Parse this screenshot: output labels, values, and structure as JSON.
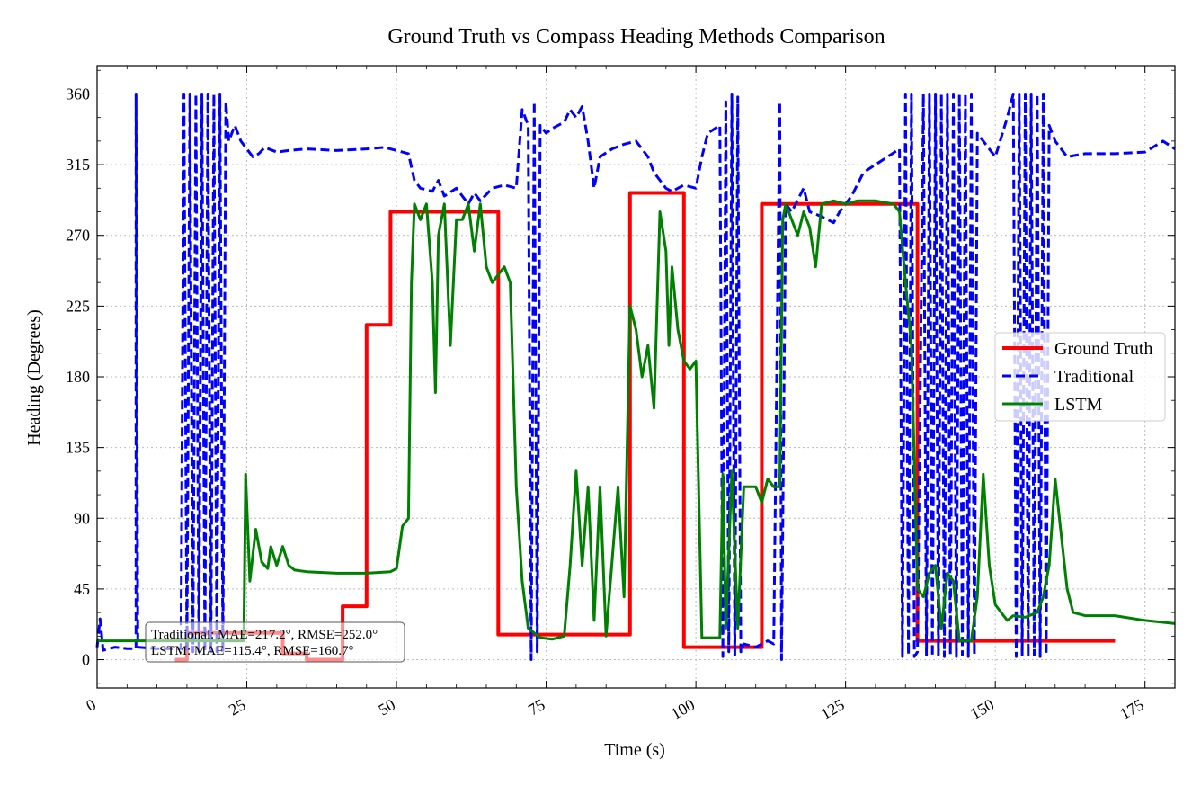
{
  "chart_data": {
    "type": "line",
    "title": "Ground Truth vs Compass Heading Methods Comparison",
    "xlabel": "Time (s)",
    "ylabel": "Heading (Degrees)",
    "xlim": [
      0,
      180
    ],
    "ylim": [
      -18,
      378
    ],
    "x_ticks": [
      0,
      25,
      50,
      75,
      100,
      125,
      150,
      175
    ],
    "y_ticks": [
      0,
      45,
      90,
      135,
      180,
      225,
      270,
      315,
      360
    ],
    "grid": true,
    "legend_position": "center-right",
    "series": [
      {
        "name": "Ground Truth",
        "color": "#ff0000",
        "style": "solid",
        "step": true,
        "points": [
          [
            13,
            0
          ],
          [
            15,
            0
          ],
          [
            15,
            17
          ],
          [
            31,
            17
          ],
          [
            31,
            4
          ],
          [
            35,
            4
          ],
          [
            35,
            0
          ],
          [
            41,
            0
          ],
          [
            41,
            34
          ],
          [
            45,
            34
          ],
          [
            45,
            213
          ],
          [
            49,
            213
          ],
          [
            49,
            285
          ],
          [
            67,
            285
          ],
          [
            67,
            16
          ],
          [
            89,
            16
          ],
          [
            89,
            297
          ],
          [
            98,
            297
          ],
          [
            98,
            8
          ],
          [
            111,
            8
          ],
          [
            111,
            290
          ],
          [
            137,
            290
          ],
          [
            137,
            12
          ],
          [
            170,
            12
          ]
        ]
      },
      {
        "name": "Traditional",
        "color": "#0000ff",
        "style": "dashed",
        "points": [
          [
            0,
            8
          ],
          [
            0.5,
            26
          ],
          [
            1,
            6
          ],
          [
            3,
            8
          ],
          [
            5,
            7
          ],
          [
            6.5,
            7
          ],
          [
            6.5,
            360
          ],
          [
            6.8,
            8
          ],
          [
            10,
            7
          ],
          [
            14,
            7
          ],
          [
            14.5,
            360
          ],
          [
            15,
            5
          ],
          [
            15.5,
            360
          ],
          [
            16,
            5
          ],
          [
            16.5,
            360
          ],
          [
            17,
            5
          ],
          [
            17.5,
            360
          ],
          [
            18,
            5
          ],
          [
            18.5,
            360
          ],
          [
            19,
            5
          ],
          [
            19.5,
            360
          ],
          [
            20,
            5
          ],
          [
            20.5,
            360
          ],
          [
            21,
            5
          ],
          [
            21.5,
            355
          ],
          [
            22,
            330
          ],
          [
            23,
            340
          ],
          [
            24,
            330
          ],
          [
            25,
            325
          ],
          [
            26,
            320
          ],
          [
            27,
            322
          ],
          [
            28,
            326
          ],
          [
            30,
            323
          ],
          [
            32,
            324
          ],
          [
            35,
            325
          ],
          [
            40,
            324
          ],
          [
            45,
            325
          ],
          [
            48,
            326
          ],
          [
            50,
            324
          ],
          [
            52,
            322
          ],
          [
            53,
            305
          ],
          [
            54,
            300
          ],
          [
            56,
            298
          ],
          [
            57,
            305
          ],
          [
            58,
            295
          ],
          [
            60,
            300
          ],
          [
            62,
            290
          ],
          [
            63,
            297
          ],
          [
            64,
            292
          ],
          [
            66,
            300
          ],
          [
            68,
            302
          ],
          [
            70,
            300
          ],
          [
            71,
            350
          ],
          [
            72,
            340
          ],
          [
            72.5,
            0
          ],
          [
            73,
            355
          ],
          [
            73.5,
            5
          ],
          [
            74,
            340
          ],
          [
            75,
            335
          ],
          [
            76,
            338
          ],
          [
            78,
            342
          ],
          [
            79,
            350
          ],
          [
            80,
            345
          ],
          [
            81,
            352
          ],
          [
            82,
            330
          ],
          [
            83,
            300
          ],
          [
            84,
            320
          ],
          [
            86,
            325
          ],
          [
            88,
            328
          ],
          [
            90,
            330
          ],
          [
            92,
            320
          ],
          [
            93,
            310
          ],
          [
            95,
            300
          ],
          [
            96,
            298
          ],
          [
            98,
            302
          ],
          [
            100,
            300
          ],
          [
            101,
            320
          ],
          [
            102,
            335
          ],
          [
            104,
            340
          ],
          [
            104.5,
            2
          ],
          [
            105,
            355
          ],
          [
            105.5,
            5
          ],
          [
            106,
            360
          ],
          [
            106.5,
            3
          ],
          [
            107,
            358
          ],
          [
            107.5,
            5
          ],
          [
            108,
            10
          ],
          [
            110,
            8
          ],
          [
            112,
            12
          ],
          [
            113,
            10
          ],
          [
            114,
            355
          ],
          [
            114.3,
            0
          ],
          [
            115,
            290
          ],
          [
            116,
            285
          ],
          [
            118,
            300
          ],
          [
            119,
            285
          ],
          [
            121,
            282
          ],
          [
            123,
            278
          ],
          [
            124,
            285
          ],
          [
            126,
            295
          ],
          [
            128,
            310
          ],
          [
            130,
            315
          ],
          [
            132,
            320
          ],
          [
            134,
            325
          ],
          [
            134.5,
            2
          ],
          [
            135,
            360
          ],
          [
            135.5,
            3
          ],
          [
            136,
            360
          ],
          [
            136.5,
            2
          ],
          [
            137,
            5
          ],
          [
            138,
            360
          ],
          [
            138.5,
            3
          ],
          [
            139,
            360
          ],
          [
            139.5,
            2
          ],
          [
            140,
            360
          ],
          [
            140.5,
            3
          ],
          [
            141,
            360
          ],
          [
            141.5,
            2
          ],
          [
            142,
            360
          ],
          [
            142.5,
            3
          ],
          [
            143,
            360
          ],
          [
            143.5,
            2
          ],
          [
            144,
            360
          ],
          [
            144.5,
            3
          ],
          [
            145,
            360
          ],
          [
            145.5,
            2
          ],
          [
            146,
            360
          ],
          [
            146.5,
            3
          ],
          [
            147,
            335
          ],
          [
            148,
            330
          ],
          [
            150,
            320
          ],
          [
            152,
            345
          ],
          [
            153,
            360
          ],
          [
            153.5,
            2
          ],
          [
            154,
            360
          ],
          [
            154.5,
            3
          ],
          [
            155,
            360
          ],
          [
            155.5,
            2
          ],
          [
            156,
            360
          ],
          [
            156.5,
            3
          ],
          [
            157,
            360
          ],
          [
            157.5,
            2
          ],
          [
            158,
            360
          ],
          [
            158.5,
            3
          ],
          [
            159,
            340
          ],
          [
            160,
            330
          ],
          [
            162,
            320
          ],
          [
            165,
            322
          ],
          [
            170,
            322
          ],
          [
            175,
            323
          ],
          [
            178,
            330
          ],
          [
            180,
            325
          ]
        ]
      },
      {
        "name": "LSTM",
        "color": "#008000",
        "style": "solid",
        "points": [
          [
            0,
            12
          ],
          [
            5,
            12
          ],
          [
            10,
            12
          ],
          [
            15,
            12
          ],
          [
            20,
            12
          ],
          [
            24.5,
            12
          ],
          [
            24.8,
            118
          ],
          [
            25.5,
            50
          ],
          [
            26.5,
            83
          ],
          [
            27.5,
            62
          ],
          [
            28.5,
            58
          ],
          [
            29,
            72
          ],
          [
            30,
            60
          ],
          [
            31,
            72
          ],
          [
            32,
            60
          ],
          [
            33,
            57
          ],
          [
            35,
            56
          ],
          [
            40,
            55
          ],
          [
            45,
            55
          ],
          [
            49,
            56
          ],
          [
            50,
            58
          ],
          [
            51,
            85
          ],
          [
            52,
            90
          ],
          [
            52.5,
            240
          ],
          [
            53,
            290
          ],
          [
            54,
            280
          ],
          [
            55,
            290
          ],
          [
            56,
            240
          ],
          [
            56.5,
            170
          ],
          [
            57,
            270
          ],
          [
            58,
            290
          ],
          [
            59,
            200
          ],
          [
            60,
            280
          ],
          [
            61,
            280
          ],
          [
            62,
            290
          ],
          [
            63,
            260
          ],
          [
            64,
            290
          ],
          [
            65,
            250
          ],
          [
            66,
            240
          ],
          [
            67,
            245
          ],
          [
            68,
            250
          ],
          [
            69,
            240
          ],
          [
            70,
            110
          ],
          [
            71,
            50
          ],
          [
            72,
            20
          ],
          [
            74,
            14
          ],
          [
            76,
            13
          ],
          [
            78,
            15
          ],
          [
            79,
            60
          ],
          [
            80,
            120
          ],
          [
            81,
            60
          ],
          [
            82,
            110
          ],
          [
            83,
            25
          ],
          [
            84,
            110
          ],
          [
            85,
            15
          ],
          [
            87,
            110
          ],
          [
            88,
            40
          ],
          [
            89,
            225
          ],
          [
            90,
            210
          ],
          [
            91,
            180
          ],
          [
            92,
            200
          ],
          [
            93,
            160
          ],
          [
            94,
            285
          ],
          [
            95,
            260
          ],
          [
            95.5,
            200
          ],
          [
            96,
            250
          ],
          [
            97,
            210
          ],
          [
            98,
            190
          ],
          [
            99,
            185
          ],
          [
            100,
            190
          ],
          [
            101,
            14
          ],
          [
            103,
            14
          ],
          [
            104,
            14
          ],
          [
            104.5,
            118
          ],
          [
            105,
            20
          ],
          [
            106,
            120
          ],
          [
            107,
            20
          ],
          [
            108,
            110
          ],
          [
            110,
            110
          ],
          [
            111,
            100
          ],
          [
            112,
            115
          ],
          [
            113,
            110
          ],
          [
            114,
            110
          ],
          [
            114.5,
            280
          ],
          [
            115,
            290
          ],
          [
            116,
            280
          ],
          [
            117,
            270
          ],
          [
            118,
            285
          ],
          [
            119,
            275
          ],
          [
            120,
            250
          ],
          [
            121,
            290
          ],
          [
            123,
            292
          ],
          [
            125,
            290
          ],
          [
            127,
            292
          ],
          [
            130,
            292
          ],
          [
            133,
            290
          ],
          [
            134,
            285
          ],
          [
            135,
            240
          ],
          [
            136,
            200
          ],
          [
            137,
            45
          ],
          [
            138,
            40
          ],
          [
            139,
            55
          ],
          [
            140,
            60
          ],
          [
            141,
            20
          ],
          [
            142,
            55
          ],
          [
            143,
            50
          ],
          [
            144,
            12
          ],
          [
            146,
            12
          ],
          [
            147,
            40
          ],
          [
            148,
            118
          ],
          [
            149,
            60
          ],
          [
            150,
            35
          ],
          [
            151,
            30
          ],
          [
            152,
            25
          ],
          [
            153,
            28
          ],
          [
            155,
            27
          ],
          [
            157,
            30
          ],
          [
            158,
            40
          ],
          [
            159,
            60
          ],
          [
            160,
            115
          ],
          [
            161,
            80
          ],
          [
            162,
            45
          ],
          [
            163,
            30
          ],
          [
            165,
            28
          ],
          [
            170,
            28
          ],
          [
            175,
            25
          ],
          [
            180,
            23
          ]
        ]
      }
    ],
    "annotation": {
      "lines": [
        "Traditional: MAE=217.2°, RMSE=252.0°",
        "LSTM: MAE=115.4°, RMSE=160.7°"
      ]
    }
  }
}
